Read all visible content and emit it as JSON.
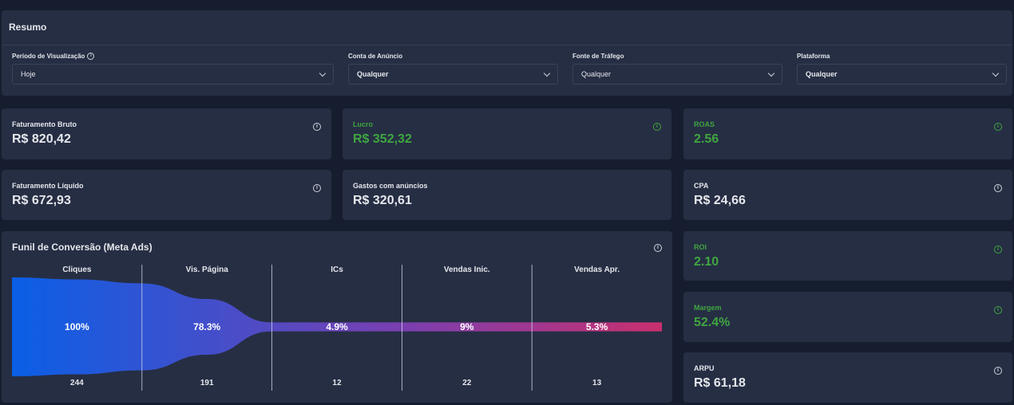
{
  "resumo": {
    "title": "Resumo",
    "filters": [
      {
        "label": "Período de Visualização",
        "value": "Hoje",
        "has_info": true
      },
      {
        "label": "Conta de Anúncio",
        "value": "Qualquer",
        "has_info": false
      },
      {
        "label": "Fonte de Tráfego",
        "value": "Qualquer",
        "has_info": false
      },
      {
        "label": "Plataforma",
        "value": "Qualquer",
        "has_info": false
      }
    ]
  },
  "info_glyph": "i",
  "cards": {
    "faturamento_bruto": {
      "label": "Faturamento Bruto",
      "value": "R$ 820,42"
    },
    "lucro": {
      "label": "Lucro",
      "value": "R$ 352,32",
      "color": "#3fa63f"
    },
    "roas": {
      "label": "ROAS",
      "value": "2.56",
      "color": "#3fa63f"
    },
    "faturamento_liquido": {
      "label": "Faturamento Líquido",
      "value": "R$ 672,93"
    },
    "gastos": {
      "label": "Gastos com anúncios",
      "value": "R$ 320,61"
    },
    "cpa": {
      "label": "CPA",
      "value": "R$ 24,66"
    },
    "roi": {
      "label": "ROI",
      "value": "2.10",
      "color": "#3fa63f"
    },
    "margem": {
      "label": "Margem",
      "value": "52.4%",
      "color": "#3fa63f"
    },
    "arpu": {
      "label": "ARPU",
      "value": "R$ 61,18"
    }
  },
  "funnel": {
    "title": "Funil de Conversão (Meta Ads)",
    "gradient": [
      "#0a5fe6",
      "#7a3fb0",
      "#c8306e"
    ],
    "stages": [
      {
        "name": "Cliques",
        "pct": "100%",
        "count": "244",
        "fraction": 1.0
      },
      {
        "name": "Vis. Página",
        "pct": "78.3%",
        "count": "191",
        "fraction": 0.783
      },
      {
        "name": "ICs",
        "pct": "4.9%",
        "count": "12",
        "fraction": 0.049
      },
      {
        "name": "Vendas Inic.",
        "pct": "9%",
        "count": "22",
        "fraction": 0.09
      },
      {
        "name": "Vendas Apr.",
        "pct": "5.3%",
        "count": "13",
        "fraction": 0.053
      }
    ]
  }
}
